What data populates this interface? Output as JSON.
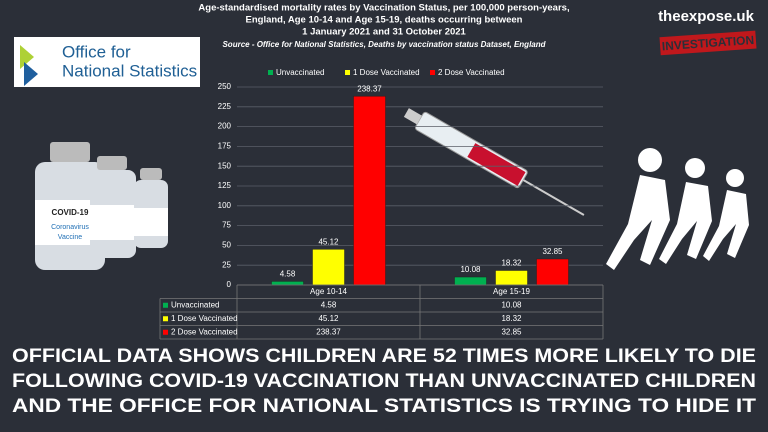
{
  "chart_data": {
    "type": "bar",
    "title": [
      "Age-standardised mortality rates by Vaccination Status, per 100,000 person-years,",
      "England, Age 10-14 and Age 15-19, deaths occurring between",
      "1 January 2021 and 31 October 2021"
    ],
    "subtitle": "Source - Office for National Statistics, Deaths by vaccination status Dataset, England",
    "categories": [
      "Age 10-14",
      "Age 15-19"
    ],
    "series": [
      {
        "name": "Unvaccinated",
        "color": "#00b050",
        "values": [
          4.58,
          10.08
        ]
      },
      {
        "name": "1 Dose Vaccinated",
        "color": "#ffff00",
        "values": [
          45.12,
          18.32
        ]
      },
      {
        "name": "2 Dose Vaccinated",
        "color": "#ff0000",
        "values": [
          238.37,
          32.85
        ]
      }
    ],
    "ylim": [
      0,
      250
    ],
    "yticks": [
      0,
      25,
      50,
      75,
      100,
      125,
      150,
      175,
      200,
      225,
      250
    ],
    "grid": true,
    "legend": "top",
    "data_table": true
  },
  "logo": [
    "Office for",
    "National Statistics"
  ],
  "site": "theexpose.uk",
  "stamp": "INVESTIGATION",
  "vial_labels": [
    "COVID-19",
    "Coronavirus",
    "Vaccine"
  ],
  "headline": [
    "OFFICIAL DATA SHOWS CHILDREN ARE 52 TIMES MORE LIKELY TO DIE",
    "FOLLOWING COVID-19 VACCINATION THAN UNVACCINATED CHILDREN",
    "AND THE OFFICE FOR NATIONAL STATISTICS IS TRYING TO HIDE IT"
  ]
}
